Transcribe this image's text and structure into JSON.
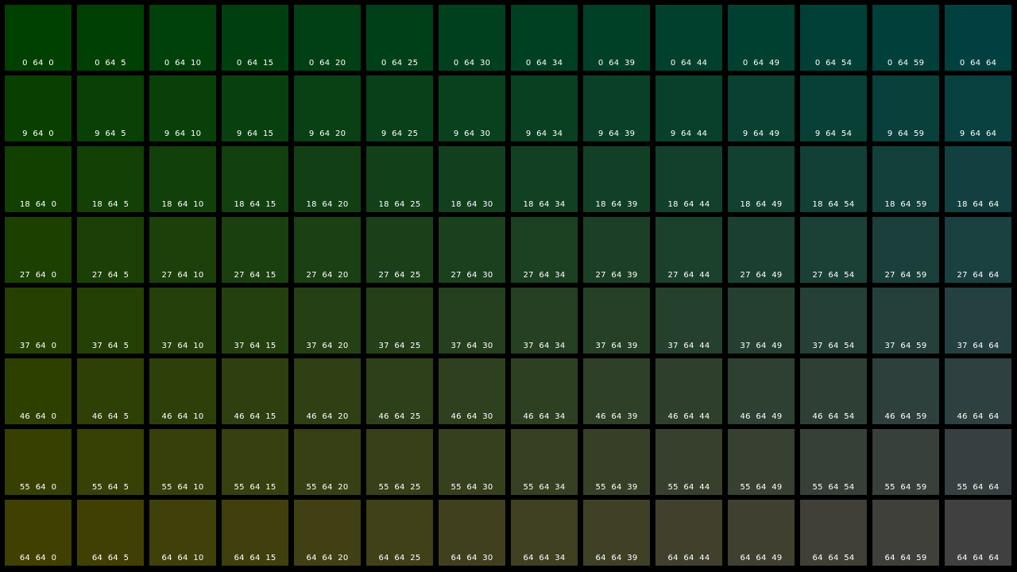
{
  "swatches": [
    {
      "r": 0,
      "g": 64,
      "b": 0,
      "label": "0  64  0"
    },
    {
      "r": 0,
      "g": 64,
      "b": 5,
      "label": "0  64  5"
    },
    {
      "r": 0,
      "g": 64,
      "b": 10,
      "label": "0  64  10"
    },
    {
      "r": 0,
      "g": 64,
      "b": 15,
      "label": "0  64  15"
    },
    {
      "r": 0,
      "g": 64,
      "b": 20,
      "label": "0  64  20"
    },
    {
      "r": 0,
      "g": 64,
      "b": 25,
      "label": "0  64  25"
    },
    {
      "r": 0,
      "g": 64,
      "b": 30,
      "label": "0  64  30"
    },
    {
      "r": 0,
      "g": 64,
      "b": 34,
      "label": "0  64  34"
    },
    {
      "r": 0,
      "g": 64,
      "b": 39,
      "label": "0  64  39"
    },
    {
      "r": 0,
      "g": 64,
      "b": 44,
      "label": "0  64  44"
    },
    {
      "r": 0,
      "g": 64,
      "b": 49,
      "label": "0  64  49"
    },
    {
      "r": 0,
      "g": 64,
      "b": 54,
      "label": "0  64  54"
    },
    {
      "r": 0,
      "g": 64,
      "b": 59,
      "label": "0  64  59"
    },
    {
      "r": 0,
      "g": 64,
      "b": 64,
      "label": "0  64  64"
    },
    {
      "r": 9,
      "g": 64,
      "b": 0,
      "label": "9  64  0"
    },
    {
      "r": 9,
      "g": 64,
      "b": 5,
      "label": "9  64  5"
    },
    {
      "r": 9,
      "g": 64,
      "b": 10,
      "label": "9  64  10"
    },
    {
      "r": 9,
      "g": 64,
      "b": 15,
      "label": "9  64  15"
    },
    {
      "r": 9,
      "g": 64,
      "b": 20,
      "label": "9  64  20"
    },
    {
      "r": 9,
      "g": 64,
      "b": 25,
      "label": "9  64  25"
    },
    {
      "r": 9,
      "g": 64,
      "b": 30,
      "label": "9  64  30"
    },
    {
      "r": 9,
      "g": 64,
      "b": 34,
      "label": "9  64  34"
    },
    {
      "r": 9,
      "g": 64,
      "b": 39,
      "label": "9  64  39"
    },
    {
      "r": 9,
      "g": 64,
      "b": 44,
      "label": "9  64  44"
    },
    {
      "r": 9,
      "g": 64,
      "b": 49,
      "label": "9  64  49"
    },
    {
      "r": 9,
      "g": 64,
      "b": 54,
      "label": "9  64  54"
    },
    {
      "r": 9,
      "g": 64,
      "b": 59,
      "label": "9  64  59"
    },
    {
      "r": 9,
      "g": 64,
      "b": 64,
      "label": "9  64  64"
    },
    {
      "r": 18,
      "g": 64,
      "b": 0,
      "label": "18  64  0"
    },
    {
      "r": 18,
      "g": 64,
      "b": 5,
      "label": "18  64  5"
    },
    {
      "r": 18,
      "g": 64,
      "b": 10,
      "label": "18  64  10"
    },
    {
      "r": 18,
      "g": 64,
      "b": 15,
      "label": "18  64  15"
    },
    {
      "r": 18,
      "g": 64,
      "b": 20,
      "label": "18  64  20"
    },
    {
      "r": 18,
      "g": 64,
      "b": 25,
      "label": "18  64  25"
    },
    {
      "r": 18,
      "g": 64,
      "b": 30,
      "label": "18  64  30"
    },
    {
      "r": 18,
      "g": 64,
      "b": 34,
      "label": "18  64  34"
    },
    {
      "r": 18,
      "g": 64,
      "b": 39,
      "label": "18  64  39"
    },
    {
      "r": 18,
      "g": 64,
      "b": 44,
      "label": "18  64  44"
    },
    {
      "r": 18,
      "g": 64,
      "b": 49,
      "label": "18  64  49"
    },
    {
      "r": 18,
      "g": 64,
      "b": 54,
      "label": "18  64  54"
    },
    {
      "r": 18,
      "g": 64,
      "b": 59,
      "label": "18  64  59"
    },
    {
      "r": 18,
      "g": 64,
      "b": 64,
      "label": "18  64  64"
    },
    {
      "r": 27,
      "g": 64,
      "b": 0,
      "label": "27  64  0"
    },
    {
      "r": 27,
      "g": 64,
      "b": 5,
      "label": "27  64  5"
    },
    {
      "r": 27,
      "g": 64,
      "b": 10,
      "label": "27  64  10"
    },
    {
      "r": 27,
      "g": 64,
      "b": 15,
      "label": "27  64  15"
    },
    {
      "r": 27,
      "g": 64,
      "b": 20,
      "label": "27  64  20"
    },
    {
      "r": 27,
      "g": 64,
      "b": 25,
      "label": "27  64  25"
    },
    {
      "r": 27,
      "g": 64,
      "b": 30,
      "label": "27  64  30"
    },
    {
      "r": 27,
      "g": 64,
      "b": 34,
      "label": "27  64  34"
    },
    {
      "r": 27,
      "g": 64,
      "b": 39,
      "label": "27  64  39"
    },
    {
      "r": 27,
      "g": 64,
      "b": 44,
      "label": "27  64  44"
    },
    {
      "r": 27,
      "g": 64,
      "b": 49,
      "label": "27  64  49"
    },
    {
      "r": 27,
      "g": 64,
      "b": 54,
      "label": "27  64  54"
    },
    {
      "r": 27,
      "g": 64,
      "b": 59,
      "label": "27  64  59"
    },
    {
      "r": 27,
      "g": 64,
      "b": 64,
      "label": "27  64  64"
    },
    {
      "r": 37,
      "g": 64,
      "b": 0,
      "label": "37  64  0"
    },
    {
      "r": 37,
      "g": 64,
      "b": 5,
      "label": "37  64  5"
    },
    {
      "r": 37,
      "g": 64,
      "b": 10,
      "label": "37  64  10"
    },
    {
      "r": 37,
      "g": 64,
      "b": 15,
      "label": "37  64  15"
    },
    {
      "r": 37,
      "g": 64,
      "b": 20,
      "label": "37  64  20"
    },
    {
      "r": 37,
      "g": 64,
      "b": 25,
      "label": "37  64  25"
    },
    {
      "r": 37,
      "g": 64,
      "b": 30,
      "label": "37  64  30"
    },
    {
      "r": 37,
      "g": 64,
      "b": 34,
      "label": "37  64  34"
    },
    {
      "r": 37,
      "g": 64,
      "b": 39,
      "label": "37  64  39"
    },
    {
      "r": 37,
      "g": 64,
      "b": 44,
      "label": "37  64  44"
    },
    {
      "r": 37,
      "g": 64,
      "b": 49,
      "label": "37  64  49"
    },
    {
      "r": 37,
      "g": 64,
      "b": 54,
      "label": "37  64  54"
    },
    {
      "r": 37,
      "g": 64,
      "b": 59,
      "label": "37  64  59"
    },
    {
      "r": 37,
      "g": 64,
      "b": 64,
      "label": "37  64  64"
    },
    {
      "r": 46,
      "g": 64,
      "b": 0,
      "label": "46  64  0"
    },
    {
      "r": 46,
      "g": 64,
      "b": 5,
      "label": "46  64  5"
    },
    {
      "r": 46,
      "g": 64,
      "b": 10,
      "label": "46  64  10"
    },
    {
      "r": 46,
      "g": 64,
      "b": 15,
      "label": "46  64  15"
    },
    {
      "r": 46,
      "g": 64,
      "b": 20,
      "label": "46  64  20"
    },
    {
      "r": 46,
      "g": 64,
      "b": 25,
      "label": "46  64  25"
    },
    {
      "r": 46,
      "g": 64,
      "b": 30,
      "label": "46  64  30"
    },
    {
      "r": 46,
      "g": 64,
      "b": 34,
      "label": "46  64  34"
    },
    {
      "r": 46,
      "g": 64,
      "b": 39,
      "label": "46  64  39"
    },
    {
      "r": 46,
      "g": 64,
      "b": 44,
      "label": "46  64  44"
    },
    {
      "r": 46,
      "g": 64,
      "b": 49,
      "label": "46  64  49"
    },
    {
      "r": 46,
      "g": 64,
      "b": 54,
      "label": "46  64  54"
    },
    {
      "r": 46,
      "g": 64,
      "b": 59,
      "label": "46  64  59"
    },
    {
      "r": 46,
      "g": 64,
      "b": 64,
      "label": "46  64  64"
    },
    {
      "r": 55,
      "g": 64,
      "b": 0,
      "label": "55  64  0"
    },
    {
      "r": 55,
      "g": 64,
      "b": 5,
      "label": "55  64  5"
    },
    {
      "r": 55,
      "g": 64,
      "b": 10,
      "label": "55  64  10"
    },
    {
      "r": 55,
      "g": 64,
      "b": 15,
      "label": "55  64  15"
    },
    {
      "r": 55,
      "g": 64,
      "b": 20,
      "label": "55  64  20"
    },
    {
      "r": 55,
      "g": 64,
      "b": 25,
      "label": "55  64  25"
    },
    {
      "r": 55,
      "g": 64,
      "b": 30,
      "label": "55  64  30"
    },
    {
      "r": 55,
      "g": 64,
      "b": 34,
      "label": "55  64  34"
    },
    {
      "r": 55,
      "g": 64,
      "b": 39,
      "label": "55  64  39"
    },
    {
      "r": 55,
      "g": 64,
      "b": 44,
      "label": "55  64  44"
    },
    {
      "r": 55,
      "g": 64,
      "b": 49,
      "label": "55  64  49"
    },
    {
      "r": 55,
      "g": 64,
      "b": 54,
      "label": "55  64  54"
    },
    {
      "r": 55,
      "g": 64,
      "b": 59,
      "label": "55  64  59"
    },
    {
      "r": 55,
      "g": 64,
      "b": 64,
      "label": "55  64  64"
    },
    {
      "r": 64,
      "g": 64,
      "b": 0,
      "label": "64  64  0"
    },
    {
      "r": 64,
      "g": 64,
      "b": 5,
      "label": "64  64  5"
    },
    {
      "r": 64,
      "g": 64,
      "b": 10,
      "label": "64  64  10"
    },
    {
      "r": 64,
      "g": 64,
      "b": 15,
      "label": "64  64  15"
    },
    {
      "r": 64,
      "g": 64,
      "b": 20,
      "label": "64  64  20"
    },
    {
      "r": 64,
      "g": 64,
      "b": 25,
      "label": "64  64  25"
    },
    {
      "r": 64,
      "g": 64,
      "b": 30,
      "label": "64  64  30"
    },
    {
      "r": 64,
      "g": 64,
      "b": 34,
      "label": "64  64  34"
    },
    {
      "r": 64,
      "g": 64,
      "b": 39,
      "label": "64  64  39"
    },
    {
      "r": 64,
      "g": 64,
      "b": 44,
      "label": "64  64  44"
    },
    {
      "r": 64,
      "g": 64,
      "b": 49,
      "label": "64  64  49"
    },
    {
      "r": 64,
      "g": 64,
      "b": 54,
      "label": "64  64  54"
    },
    {
      "r": 64,
      "g": 64,
      "b": 59,
      "label": "64  64  59"
    },
    {
      "r": 64,
      "g": 64,
      "b": 64,
      "label": "64  64  64"
    }
  ]
}
